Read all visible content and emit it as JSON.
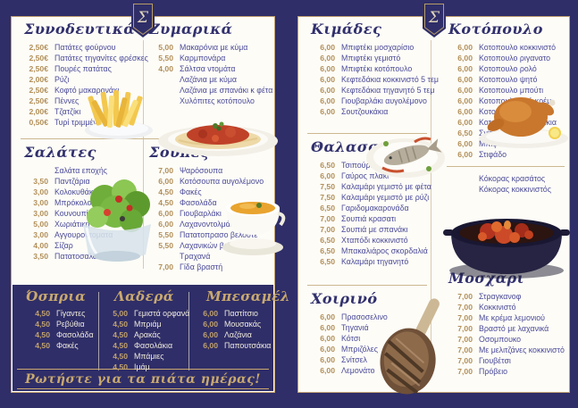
{
  "colors": {
    "background": "#2f2e68",
    "page": "#fdfcf7",
    "frame_gold": "#c2a274",
    "price_gold": "#b28f58",
    "item_blue": "#4b4b99",
    "title_navy": "#31306d",
    "banner_gold": "#c9a96f"
  },
  "logo_letter": "Σ",
  "photos": {
    "fries": "french-fries-photo",
    "pasta": "spaghetti-bolognese-photo",
    "salad": "green-salad-photo",
    "soup": "soup-bowl-photo",
    "fish": "grilled-fish-photo",
    "chicken": "roast-chicken-photo",
    "stew": "red-stew-pot-photo",
    "chop": "pork-chop-photo"
  },
  "left_page": {
    "synodeftika": {
      "title": "Συνοδευτικά",
      "items": [
        {
          "price": "2,50€",
          "label": "Πατάτες φούρνου"
        },
        {
          "price": "2,50€",
          "label": "Πατάτες τηγανίτες φρέσκες"
        },
        {
          "price": "2,50€",
          "label": "Πουρές πατάτας"
        },
        {
          "price": "2,00€",
          "label": "Ρύζι"
        },
        {
          "price": "2,50€",
          "label": "Κοφτό μακαρονάκι"
        },
        {
          "price": "2,50€",
          "label": "Πέννες"
        },
        {
          "price": "2,00€",
          "label": "Τζατζίκι"
        },
        {
          "price": "0,50€",
          "label": "Τυρί τριμμένο"
        }
      ]
    },
    "zymarika": {
      "title": "Ζυμαρικά",
      "items": [
        {
          "price": "5,00",
          "label": "Μακαρόνια με κύμα"
        },
        {
          "price": "5,50",
          "label": "Καρμπονάρα"
        },
        {
          "price": "4,00",
          "label": "Σάλτσα ντομάτα"
        },
        {
          "price": "",
          "label": "Λαζάνια με κύμα"
        },
        {
          "price": "",
          "label": "Λαζάνια με σπανάκι κ φέτα"
        },
        {
          "price": "",
          "label": "Χυλόπιτες κοτόπουλο"
        }
      ]
    },
    "salates": {
      "title": "Σαλάτες",
      "items": [
        {
          "price": "",
          "label": "Σαλάτα εποχής"
        },
        {
          "price": "3,50",
          "label": "Παντζάρια"
        },
        {
          "price": "3,00",
          "label": "Κολοκυθάκια"
        },
        {
          "price": "3,00",
          "label": "Μπρόκολο"
        },
        {
          "price": "3,00",
          "label": "Κουνουπίδι"
        },
        {
          "price": "5,00",
          "label": "Χωριάτικη"
        },
        {
          "price": "3,00",
          "label": "Αγγουροντοματα"
        },
        {
          "price": "4,00",
          "label": "Σίζαρ"
        },
        {
          "price": "3,50",
          "label": "Πατατοσαλάτα"
        }
      ]
    },
    "soupes": {
      "title": "Σούπες",
      "items": [
        {
          "price": "7,00",
          "label": "Ψαρόσουπα"
        },
        {
          "price": "6,00",
          "label": "Κοτόσουπα αυγολέμονο"
        },
        {
          "price": "4,50",
          "label": "Φακές"
        },
        {
          "price": "4,50",
          "label": "Φασολάδα"
        },
        {
          "price": "6,00",
          "label": "Γιουβαρλάκι"
        },
        {
          "price": "6,00",
          "label": "Λαχανοντολμάδες"
        },
        {
          "price": "5,50",
          "label": "Πατατοπρασο βελουτε"
        },
        {
          "price": "5,50",
          "label": "Λαχανικών βελουτε"
        },
        {
          "price": "",
          "label": "Τραχανά"
        },
        {
          "price": "7,00",
          "label": "Γίδα βραστή"
        }
      ]
    },
    "ospria": {
      "title": "Όσπρια",
      "items": [
        {
          "price": "4,50",
          "label": "Γίγαντες"
        },
        {
          "price": "4,50",
          "label": "Ρεβύθια"
        },
        {
          "price": "4,50",
          "label": "Φασολάδα"
        },
        {
          "price": "4,50",
          "label": "Φακές"
        }
      ]
    },
    "ladera": {
      "title": "Λαδερά",
      "items": [
        {
          "price": "5,00",
          "label": "Γεμιστά ορφανά"
        },
        {
          "price": "4,50",
          "label": "Μπριάμ"
        },
        {
          "price": "4,50",
          "label": "Αρακάς"
        },
        {
          "price": "4,50",
          "label": "Φασολάκια"
        },
        {
          "price": "4,50",
          "label": "Μπάμιες"
        },
        {
          "price": "4,50",
          "label": "Ιμάμ"
        }
      ]
    },
    "mpesamel": {
      "title": "Μπεσαμέλ",
      "items": [
        {
          "price": "6,00",
          "label": "Παστίτσιο"
        },
        {
          "price": "6,00",
          "label": "Μουσακάς"
        },
        {
          "price": "6,00",
          "label": "Λαζάνια"
        },
        {
          "price": "6,00",
          "label": "Παπουτσάκια"
        }
      ]
    },
    "banner": "Ρωτήστε για τα πιάτα ημέρας!"
  },
  "right_page": {
    "kimades": {
      "title": "Κιμάδες",
      "items": [
        {
          "price": "6,00",
          "label": "Μπιφτέκι μοσχαρίσιο"
        },
        {
          "price": "6,00",
          "label": "Μπιφτέκι γεμιστό"
        },
        {
          "price": "6,00",
          "label": "Μπιφτέκι κοτόπουλο"
        },
        {
          "price": "6,00",
          "label": "Κεφτεδάκια κοκκινιστό 5 τεμ"
        },
        {
          "price": "6,00",
          "label": "Κεφτεδάκια τηγανητό 5 τεμ"
        },
        {
          "price": "6,00",
          "label": "Γιουβαρλάκι αυγολέμονο"
        },
        {
          "price": "6,00",
          "label": "Σουτζουκάκια"
        }
      ]
    },
    "kotopoulo": {
      "title": "Κοτόπουλο",
      "items": [
        {
          "price": "6,00",
          "label": "Κοτοπουλο κοκκινιστό"
        },
        {
          "price": "6,00",
          "label": "Κοτοπουλο ριγανατο"
        },
        {
          "price": "6,00",
          "label": "Κοτοπουλο ρολό"
        },
        {
          "price": "6,00",
          "label": "Κοτοπουλο ψητό"
        },
        {
          "price": "6,00",
          "label": "Κοτοπουλο μπούτι"
        },
        {
          "price": "6,00",
          "label": "Κοτοπουλο αλά κρέμ"
        },
        {
          "price": "6,00",
          "label": "Κοτοπουλο τηγανιά"
        },
        {
          "price": "6,00",
          "label": "Κοτοπουλο κοπανακια"
        },
        {
          "price": "6,50",
          "label": "Σνίτσελ"
        },
        {
          "price": "6,00",
          "label": "Μπιφτέκι"
        },
        {
          "price": "6,00",
          "label": "Στιφάδο"
        }
      ],
      "extra_items": [
        {
          "price": "",
          "label": "Κόκορας κρασάτος"
        },
        {
          "price": "",
          "label": "Κόκορας κοκκινιστός"
        }
      ]
    },
    "thalassina": {
      "title": "Θαλασσινά",
      "items": [
        {
          "price": "6,50",
          "label": "Τσιπούρα"
        },
        {
          "price": "6,00",
          "label": "Γαύρος πλακι"
        },
        {
          "price": "7,50",
          "label": "Καλαμάρι γεμιστό με φέτα"
        },
        {
          "price": "7,50",
          "label": "Καλαμάρι γεμιστό με ρύζι"
        },
        {
          "price": "6,50",
          "label": "Γαριδομακαρονάδα"
        },
        {
          "price": "7,00",
          "label": "Σουπιά κρασατι"
        },
        {
          "price": "7,00",
          "label": "Σουπιά με σπανάκι"
        },
        {
          "price": "6,50",
          "label": "Χταπόδι κοκκινιστό"
        },
        {
          "price": "6,50",
          "label": "Μπακαλιάρος σκορδαλιά"
        },
        {
          "price": "6,50",
          "label": "Καλαμάρι τηγανητό"
        }
      ]
    },
    "xoirino": {
      "title": "Χοιρινό",
      "items": [
        {
          "price": "6,00",
          "label": "Πρασοσελινο"
        },
        {
          "price": "6,00",
          "label": "Τηγανιά"
        },
        {
          "price": "6,00",
          "label": "Κότσι"
        },
        {
          "price": "6,00",
          "label": "Μπριζόλες"
        },
        {
          "price": "6,00",
          "label": "Σνίτσελ"
        },
        {
          "price": "6,00",
          "label": "Λεμονάτο"
        }
      ]
    },
    "mosxari": {
      "title": "Μοσχάρι",
      "items": [
        {
          "price": "7,00",
          "label": "Στραγκανοφ"
        },
        {
          "price": "7,00",
          "label": "Κοκκινιστό"
        },
        {
          "price": "7,00",
          "label": "Με κρέμα λεμονιού"
        },
        {
          "price": "7,00",
          "label": "Βραστό με λαχανικά"
        },
        {
          "price": "7,00",
          "label": "Οσομπουκο"
        },
        {
          "price": "7,00",
          "label": "Με μελιτζάνες κοκκινιστό"
        },
        {
          "price": "7,00",
          "label": "Γιουβέτσι"
        },
        {
          "price": "7,00",
          "label": "Πρόβειο"
        }
      ]
    }
  }
}
